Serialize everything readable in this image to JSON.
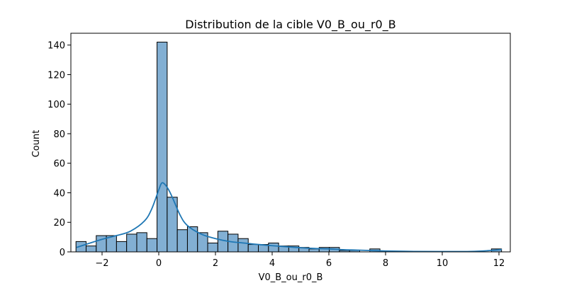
{
  "chart_data": {
    "type": "bar",
    "subtype": "histogram-with-kde",
    "title": "Distribution de la cible V0_B_ou_r0_B",
    "xlabel": "V0_B_ou_r0_B",
    "ylabel": "Count",
    "xlim": [
      -3.1,
      12.4
    ],
    "ylim": [
      0,
      148
    ],
    "xticks": [
      -2,
      0,
      2,
      4,
      6,
      8,
      10,
      12
    ],
    "yticks": [
      0,
      20,
      40,
      60,
      80,
      100,
      120,
      140
    ],
    "xtick_labels": [
      "−2",
      "0",
      "2",
      "4",
      "6",
      "8",
      "10",
      "12"
    ],
    "ytick_labels": [
      "0",
      "20",
      "40",
      "60",
      "80",
      "100",
      "120",
      "140"
    ],
    "grid": false,
    "bin_start": -2.92,
    "bin_width": 0.3574,
    "counts": [
      7,
      4,
      11,
      11,
      7,
      12,
      13,
      9,
      142,
      37,
      15,
      17,
      13,
      6,
      14,
      12,
      9,
      5,
      5,
      6,
      4,
      4,
      3,
      2,
      3,
      3,
      1,
      1,
      0,
      2,
      0,
      0,
      0,
      0,
      0,
      0,
      0,
      0,
      0,
      0,
      0,
      2
    ],
    "kde": {
      "x": [
        -2.9,
        -2.5,
        -2.0,
        -1.5,
        -1.0,
        -0.5,
        -0.25,
        0.0,
        0.1,
        0.2,
        0.35,
        0.5,
        0.75,
        1.0,
        1.5,
        2.0,
        2.5,
        3.0,
        3.5,
        4.0,
        4.5,
        5.0,
        5.5,
        6.0,
        6.5,
        7.0,
        7.5,
        8.0,
        9.0,
        10.0,
        11.0,
        11.6,
        12.1
      ],
      "y": [
        3,
        5.5,
        8.5,
        11,
        14,
        21,
        29,
        42,
        46.5,
        46,
        42,
        36,
        25,
        18,
        12,
        9,
        7,
        6,
        5,
        4.2,
        3.5,
        2.8,
        2.3,
        2,
        1.5,
        1.2,
        0.9,
        0.6,
        0.3,
        0.2,
        0.3,
        0.8,
        1.6
      ]
    },
    "colors": {
      "bar_fill": "#82afd3",
      "bar_edge": "#000000",
      "kde_line": "#1f77b4"
    }
  }
}
